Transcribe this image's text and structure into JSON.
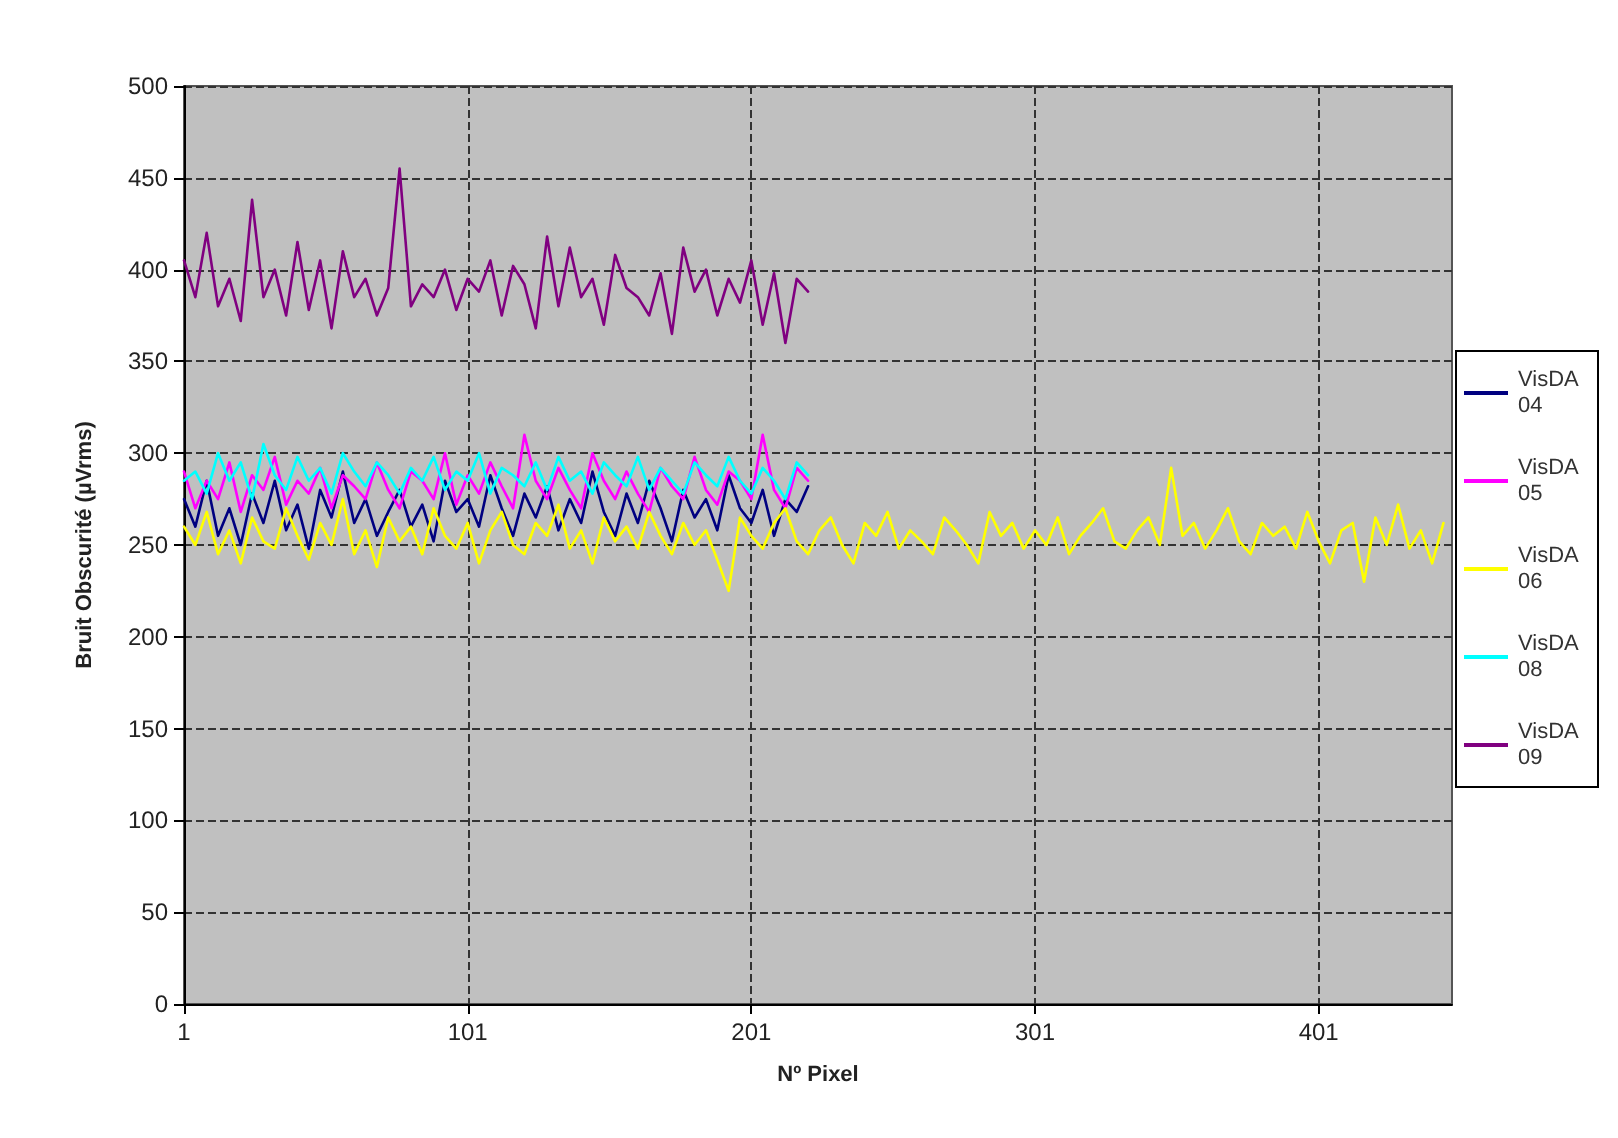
{
  "chart_data": {
    "type": "line",
    "xlabel": "Nº Pixel",
    "ylabel": "Bruit Obscurité (µVrms)",
    "x": [
      1,
      5,
      9,
      13,
      17,
      21,
      25,
      29,
      33,
      37,
      41,
      45,
      49,
      53,
      57,
      61,
      65,
      69,
      73,
      77,
      81,
      85,
      89,
      93,
      97,
      101,
      105,
      109,
      113,
      117,
      121,
      125,
      129,
      133,
      137,
      141,
      145,
      149,
      153,
      157,
      161,
      165,
      169,
      173,
      177,
      181,
      185,
      189,
      193,
      197,
      201,
      205,
      209,
      213,
      217,
      221
    ],
    "series": [
      {
        "name": "VisDA 04",
        "color": "#000080",
        "values": [
          275,
          260,
          285,
          255,
          270,
          250,
          278,
          262,
          285,
          258,
          272,
          248,
          280,
          265,
          290,
          262,
          275,
          255,
          268,
          280,
          260,
          272,
          252,
          285,
          268,
          275,
          260,
          288,
          270,
          255,
          278,
          265,
          282,
          258,
          275,
          262,
          290,
          268,
          255,
          278,
          262,
          285,
          270,
          252,
          280,
          265,
          275,
          258,
          288,
          270,
          262,
          280,
          255,
          275,
          268,
          282
        ]
      },
      {
        "name": "VisDA 05",
        "color": "#ff00ff",
        "values": [
          290,
          270,
          285,
          275,
          295,
          268,
          288,
          280,
          298,
          272,
          285,
          278,
          292,
          270,
          288,
          282,
          275,
          295,
          280,
          270,
          290,
          285,
          275,
          300,
          272,
          288,
          278,
          295,
          282,
          270,
          310,
          285,
          275,
          292,
          280,
          270,
          300,
          285,
          275,
          290,
          278,
          268,
          292,
          282,
          275,
          298,
          280,
          272,
          290,
          285,
          275,
          310,
          280,
          270,
          292,
          285
        ]
      },
      {
        "name": "VisDA 06",
        "color": "#ffff00",
        "x": [
          1,
          5,
          9,
          13,
          17,
          21,
          25,
          29,
          33,
          37,
          41,
          45,
          49,
          53,
          57,
          61,
          65,
          69,
          73,
          77,
          81,
          85,
          89,
          93,
          97,
          101,
          105,
          109,
          113,
          117,
          121,
          125,
          129,
          133,
          137,
          141,
          145,
          149,
          153,
          157,
          161,
          165,
          169,
          173,
          177,
          181,
          185,
          189,
          193,
          197,
          201,
          205,
          209,
          213,
          217,
          221,
          225,
          229,
          233,
          237,
          241,
          245,
          249,
          253,
          257,
          261,
          265,
          269,
          273,
          277,
          281,
          285,
          289,
          293,
          297,
          301,
          305,
          309,
          313,
          317,
          321,
          325,
          329,
          333,
          337,
          341,
          345,
          349,
          353,
          357,
          361,
          365,
          369,
          373,
          377,
          381,
          385,
          389,
          393,
          397,
          401,
          405,
          409,
          413,
          417,
          421,
          425,
          429,
          433,
          437,
          441,
          445
        ],
        "values": [
          260,
          250,
          268,
          245,
          258,
          240,
          265,
          252,
          248,
          270,
          255,
          242,
          262,
          250,
          275,
          245,
          258,
          238,
          265,
          252,
          260,
          245,
          270,
          255,
          248,
          262,
          240,
          258,
          268,
          250,
          245,
          262,
          255,
          272,
          248,
          258,
          240,
          265,
          252,
          260,
          248,
          268,
          255,
          245,
          262,
          250,
          258,
          242,
          225,
          265,
          255,
          248,
          262,
          270,
          252,
          245,
          258,
          265,
          250,
          240,
          262,
          255,
          268,
          248,
          258,
          252,
          245,
          265,
          258,
          250,
          240,
          268,
          255,
          262,
          248,
          258,
          250,
          265,
          245,
          255,
          262,
          270,
          252,
          248,
          258,
          265,
          250,
          292,
          255,
          262,
          248,
          258,
          270,
          252,
          245,
          262,
          255,
          260,
          248,
          268,
          252,
          240,
          258,
          262,
          230,
          265,
          250,
          272,
          248,
          258,
          240,
          262
        ]
      },
      {
        "name": "VisDA 08",
        "color": "#00ffff",
        "values": [
          285,
          290,
          278,
          300,
          285,
          295,
          275,
          305,
          288,
          280,
          298,
          285,
          292,
          278,
          300,
          290,
          282,
          295,
          288,
          278,
          292,
          285,
          298,
          280,
          290,
          285,
          300,
          278,
          292,
          288,
          282,
          295,
          280,
          298,
          285,
          290,
          278,
          295,
          288,
          282,
          298,
          280,
          292,
          285,
          278,
          295,
          288,
          282,
          298,
          285,
          278,
          292,
          285,
          275,
          295,
          288
        ]
      },
      {
        "name": "VisDA 09",
        "color": "#800080",
        "values": [
          405,
          385,
          420,
          380,
          395,
          372,
          438,
          385,
          400,
          375,
          415,
          378,
          405,
          368,
          410,
          385,
          395,
          375,
          390,
          455,
          380,
          392,
          385,
          400,
          378,
          395,
          388,
          405,
          375,
          402,
          392,
          368,
          418,
          380,
          412,
          385,
          395,
          370,
          408,
          390,
          385,
          375,
          398,
          365,
          412,
          388,
          400,
          375,
          395,
          382,
          405,
          370,
          398,
          360,
          395,
          388
        ]
      }
    ],
    "xlim": [
      1,
      448
    ],
    "xticks": [
      1,
      101,
      201,
      301,
      401
    ],
    "ylim": [
      0,
      500
    ],
    "yticks": [
      0,
      50,
      100,
      150,
      200,
      250,
      300,
      350,
      400,
      450,
      500
    ],
    "grid": true,
    "legend": "right",
    "marker": "none",
    "line_style": "solid"
  }
}
